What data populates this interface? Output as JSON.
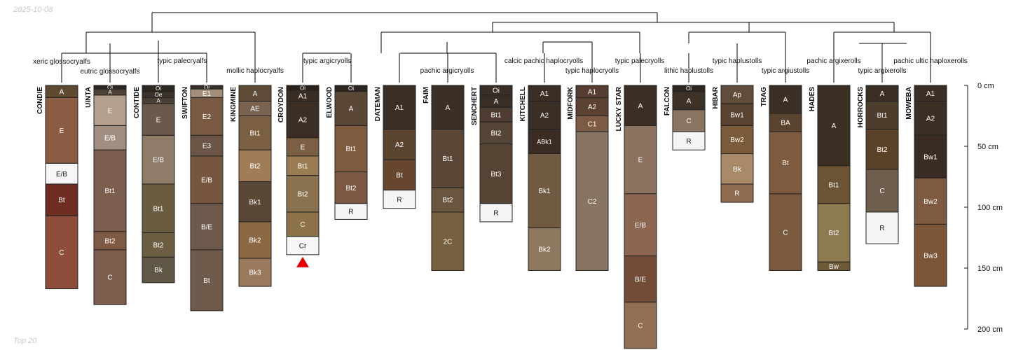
{
  "date_label": "2025-10-08",
  "footer_label": "Top 20",
  "colors": {
    "line": "#000000",
    "ink": "#111111",
    "cr_marker": "#e60000",
    "tick": "#111111"
  },
  "depth_axis": {
    "unit": "cm",
    "max": 200,
    "ticks": [
      "0 cm",
      "50 cm",
      "100 cm",
      "150 cm",
      "200 cm"
    ]
  },
  "taxa_labels": [
    "xeric glossocryalfs",
    "eutric glossocryalfs",
    "typic palecryalfs",
    "mollic haplocryalfs",
    "typic argicryolls",
    "pachic argicryolls",
    "calcic pachic haplocryolls",
    "typic haplocryolls",
    "typic palecryolls",
    "lithic haplustolls",
    "typic haplustolls",
    "typic argiustolls",
    "pachic argixerolls",
    "typic argixerolls",
    "pachic ultic haploxerolls"
  ],
  "profiles": [
    {
      "name": "CONDIE",
      "horizons": [
        {
          "name": "A",
          "top": 0,
          "bottom": 10,
          "color": "#5e4a33"
        },
        {
          "name": "E",
          "top": 10,
          "bottom": 64,
          "color": "#8a5c44"
        },
        {
          "name": "E/B",
          "top": 64,
          "bottom": 81,
          "color": "#f6f6f6"
        },
        {
          "name": "Bt",
          "top": 81,
          "bottom": 107,
          "color": "#6e2f22"
        },
        {
          "name": "C",
          "top": 107,
          "bottom": 167,
          "color": "#8e4e3c"
        }
      ]
    },
    {
      "name": "UINTA",
      "horizons": [
        {
          "name": "Oi",
          "top": 0,
          "bottom": 3,
          "color": "#2f2620"
        },
        {
          "name": "A",
          "top": 3,
          "bottom": 8,
          "color": "#4d4035"
        },
        {
          "name": "E",
          "top": 8,
          "bottom": 33,
          "color": "#b39f8e"
        },
        {
          "name": "E/B",
          "top": 33,
          "bottom": 53,
          "color": "#a08f80"
        },
        {
          "name": "Bt1",
          "top": 53,
          "bottom": 120,
          "color": "#7b5e4d"
        },
        {
          "name": "Bt2",
          "top": 120,
          "bottom": 135,
          "color": "#7e5a44"
        },
        {
          "name": "C",
          "top": 135,
          "bottom": 180,
          "color": "#7c5c4a"
        }
      ]
    },
    {
      "name": "CONTIDE",
      "horizons": [
        {
          "name": "Oi",
          "top": 0,
          "bottom": 5,
          "color": "#2e2823"
        },
        {
          "name": "Oe",
          "top": 5,
          "bottom": 10,
          "color": "#3b332c"
        },
        {
          "name": "A",
          "top": 10,
          "bottom": 15,
          "color": "#4a3f34"
        },
        {
          "name": "E",
          "top": 15,
          "bottom": 41,
          "color": "#6a5a4b"
        },
        {
          "name": "E/B",
          "top": 41,
          "bottom": 81,
          "color": "#8e7c68"
        },
        {
          "name": "Bt1",
          "top": 81,
          "bottom": 121,
          "color": "#6a5c3f"
        },
        {
          "name": "Bt2",
          "top": 121,
          "bottom": 141,
          "color": "#6b5e42"
        },
        {
          "name": "Bk",
          "top": 141,
          "bottom": 162,
          "color": "#5f5646"
        }
      ]
    },
    {
      "name": "SWIFTON",
      "horizons": [
        {
          "name": "Oi",
          "top": 0,
          "bottom": 3,
          "color": "#3a2f27"
        },
        {
          "name": "E1",
          "top": 3,
          "bottom": 10,
          "color": "#a38e7b"
        },
        {
          "name": "E2",
          "top": 10,
          "bottom": 41,
          "color": "#7a5a42"
        },
        {
          "name": "E3",
          "top": 41,
          "bottom": 58,
          "color": "#6a5546"
        },
        {
          "name": "E/B",
          "top": 58,
          "bottom": 97,
          "color": "#76563f"
        },
        {
          "name": "B/E",
          "top": 97,
          "bottom": 135,
          "color": "#6d5a4d"
        },
        {
          "name": "Bt",
          "top": 135,
          "bottom": 185,
          "color": "#6e5b4c"
        }
      ]
    },
    {
      "name": "KINGMINE",
      "horizons": [
        {
          "name": "A",
          "top": 0,
          "bottom": 13,
          "color": "#5e4a36"
        },
        {
          "name": "AE",
          "top": 13,
          "bottom": 25,
          "color": "#7a6250"
        },
        {
          "name": "Bt1",
          "top": 25,
          "bottom": 53,
          "color": "#7a5f43"
        },
        {
          "name": "Bt2",
          "top": 53,
          "bottom": 79,
          "color": "#a07c59"
        },
        {
          "name": "Bk1",
          "top": 79,
          "bottom": 112,
          "color": "#5a4836"
        },
        {
          "name": "Bk2",
          "top": 112,
          "bottom": 142,
          "color": "#8c6845"
        },
        {
          "name": "Bk3",
          "top": 142,
          "bottom": 165,
          "color": "#9a7a5c"
        }
      ]
    },
    {
      "name": "CROYDON",
      "horizons": [
        {
          "name": "Oi",
          "top": 0,
          "bottom": 4,
          "color": "#2b221c"
        },
        {
          "name": "A1",
          "top": 4,
          "bottom": 13,
          "color": "#3a2e24"
        },
        {
          "name": "A2",
          "top": 13,
          "bottom": 43,
          "color": "#3b2f25"
        },
        {
          "name": "E",
          "top": 43,
          "bottom": 58,
          "color": "#7a5f44"
        },
        {
          "name": "Bt1",
          "top": 58,
          "bottom": 74,
          "color": "#9a7c52"
        },
        {
          "name": "Bt2",
          "top": 74,
          "bottom": 104,
          "color": "#8a7250"
        },
        {
          "name": "C",
          "top": 104,
          "bottom": 124,
          "color": "#8b7248"
        },
        {
          "name": "Cr",
          "top": 124,
          "bottom": 139,
          "color": "#f7f7f7"
        }
      ]
    },
    {
      "name": "ELWOOD",
      "horizons": [
        {
          "name": "Oi",
          "top": 0,
          "bottom": 5,
          "color": "#2e2620"
        },
        {
          "name": "A",
          "top": 5,
          "bottom": 33,
          "color": "#5a4735"
        },
        {
          "name": "Bt1",
          "top": 33,
          "bottom": 71,
          "color": "#7e5a3e"
        },
        {
          "name": "Bt2",
          "top": 71,
          "bottom": 97,
          "color": "#7c5842"
        },
        {
          "name": "R",
          "top": 97,
          "bottom": 110,
          "color": "#f5f5f5"
        }
      ]
    },
    {
      "name": "DATEMAN",
      "horizons": [
        {
          "name": "A1",
          "top": 0,
          "bottom": 36,
          "color": "#3b2e25"
        },
        {
          "name": "A2",
          "top": 36,
          "bottom": 61,
          "color": "#5a432f"
        },
        {
          "name": "Bt",
          "top": 61,
          "bottom": 86,
          "color": "#66462f"
        },
        {
          "name": "R",
          "top": 86,
          "bottom": 101,
          "color": "#f5f5f5"
        }
      ]
    },
    {
      "name": "FAIM",
      "horizons": [
        {
          "name": "A",
          "top": 0,
          "bottom": 36,
          "color": "#3c2f25"
        },
        {
          "name": "Bt1",
          "top": 36,
          "bottom": 84,
          "color": "#5a4738"
        },
        {
          "name": "Bt2",
          "top": 84,
          "bottom": 104,
          "color": "#6a553f"
        },
        {
          "name": "2C",
          "top": 104,
          "bottom": 152,
          "color": "#76603f"
        }
      ]
    },
    {
      "name": "SENCHERT",
      "horizons": [
        {
          "name": "Oi",
          "top": 0,
          "bottom": 8,
          "color": "#3a2f27"
        },
        {
          "name": "A",
          "top": 8,
          "bottom": 18,
          "color": "#3a2f27"
        },
        {
          "name": "Bt1",
          "top": 18,
          "bottom": 30,
          "color": "#4e3d30"
        },
        {
          "name": "Bt2",
          "top": 30,
          "bottom": 48,
          "color": "#554536"
        },
        {
          "name": "Bt3",
          "top": 48,
          "bottom": 97,
          "color": "#554433"
        },
        {
          "name": "R",
          "top": 97,
          "bottom": 112,
          "color": "#f5f5f5"
        }
      ]
    },
    {
      "name": "KITCHELL",
      "horizons": [
        {
          "name": "A1",
          "top": 0,
          "bottom": 13,
          "color": "#3b2e25"
        },
        {
          "name": "A2",
          "top": 13,
          "bottom": 36,
          "color": "#3b2e24"
        },
        {
          "name": "ABk1",
          "top": 36,
          "bottom": 56,
          "color": "#3a2c22"
        },
        {
          "name": "Bk1",
          "top": 56,
          "bottom": 117,
          "color": "#705a42"
        },
        {
          "name": "Bk2",
          "top": 117,
          "bottom": 152,
          "color": "#8e7860"
        }
      ]
    },
    {
      "name": "MIDFORK",
      "horizons": [
        {
          "name": "A1",
          "top": 0,
          "bottom": 10,
          "color": "#553e31"
        },
        {
          "name": "A2",
          "top": 10,
          "bottom": 25,
          "color": "#5a4132"
        },
        {
          "name": "C1",
          "top": 25,
          "bottom": 38,
          "color": "#7c5a44"
        },
        {
          "name": "C2",
          "top": 38,
          "bottom": 152,
          "color": "#877562"
        }
      ]
    },
    {
      "name": "LUCKY STAR",
      "horizons": [
        {
          "name": "A",
          "top": 0,
          "bottom": 33,
          "color": "#3d2f25"
        },
        {
          "name": "E",
          "top": 33,
          "bottom": 89,
          "color": "#8e7260"
        },
        {
          "name": "E/B",
          "top": 89,
          "bottom": 140,
          "color": "#8c6650"
        },
        {
          "name": "B/E",
          "top": 140,
          "bottom": 178,
          "color": "#734c38"
        },
        {
          "name": "C",
          "top": 178,
          "bottom": 216,
          "color": "#926e52"
        }
      ]
    },
    {
      "name": "FALCON",
      "horizons": [
        {
          "name": "Oi",
          "top": 0,
          "bottom": 5,
          "color": "#2e261f"
        },
        {
          "name": "A",
          "top": 5,
          "bottom": 20,
          "color": "#3d3128"
        },
        {
          "name": "C",
          "top": 20,
          "bottom": 38,
          "color": "#8a7462"
        },
        {
          "name": "R",
          "top": 38,
          "bottom": 53,
          "color": "#f5f5f5"
        }
      ]
    },
    {
      "name": "HIBAR",
      "horizons": [
        {
          "name": "Ap",
          "top": 0,
          "bottom": 15,
          "color": "#604c3b"
        },
        {
          "name": "Bw1",
          "top": 15,
          "bottom": 33,
          "color": "#5a4230"
        },
        {
          "name": "Bw2",
          "top": 33,
          "bottom": 56,
          "color": "#7a5c3a"
        },
        {
          "name": "Bk",
          "top": 56,
          "bottom": 81,
          "color": "#a98a68"
        },
        {
          "name": "R",
          "top": 81,
          "bottom": 96,
          "color": "#8e6a4e"
        }
      ]
    },
    {
      "name": "TRAG",
      "horizons": [
        {
          "name": "A",
          "top": 0,
          "bottom": 23,
          "color": "#3c2f26"
        },
        {
          "name": "BA",
          "top": 23,
          "bottom": 38,
          "color": "#5a432f"
        },
        {
          "name": "Bt",
          "top": 38,
          "bottom": 89,
          "color": "#7e5a3e"
        },
        {
          "name": "C",
          "top": 89,
          "bottom": 152,
          "color": "#7a5a3e"
        }
      ]
    },
    {
      "name": "HADES",
      "horizons": [
        {
          "name": "A",
          "top": 0,
          "bottom": 66,
          "color": "#3b2e22"
        },
        {
          "name": "Bt1",
          "top": 66,
          "bottom": 97,
          "color": "#6a5434"
        },
        {
          "name": "Bt2",
          "top": 97,
          "bottom": 145,
          "color": "#8e7a50"
        },
        {
          "name": "Bw",
          "top": 145,
          "bottom": 152,
          "color": "#6e5a36"
        }
      ]
    },
    {
      "name": "HORROCKS",
      "horizons": [
        {
          "name": "A",
          "top": 0,
          "bottom": 13,
          "color": "#3b2e23"
        },
        {
          "name": "Bt1",
          "top": 13,
          "bottom": 36,
          "color": "#4d3d2c"
        },
        {
          "name": "Bt2",
          "top": 36,
          "bottom": 69,
          "color": "#5a4228"
        },
        {
          "name": "C",
          "top": 69,
          "bottom": 104,
          "color": "#6e5e4e"
        },
        {
          "name": "R",
          "top": 104,
          "bottom": 130,
          "color": "#f5f5f5"
        }
      ]
    },
    {
      "name": "MOWEBA",
      "horizons": [
        {
          "name": "A1",
          "top": 0,
          "bottom": 13,
          "color": "#3b2e24"
        },
        {
          "name": "A2",
          "top": 13,
          "bottom": 41,
          "color": "#3b2e24"
        },
        {
          "name": "Bw1",
          "top": 41,
          "bottom": 76,
          "color": "#3a2c22"
        },
        {
          "name": "Bw2",
          "top": 76,
          "bottom": 114,
          "color": "#7e5a40"
        },
        {
          "name": "Bw3",
          "top": 114,
          "bottom": 165,
          "color": "#7c5638"
        }
      ]
    }
  ]
}
